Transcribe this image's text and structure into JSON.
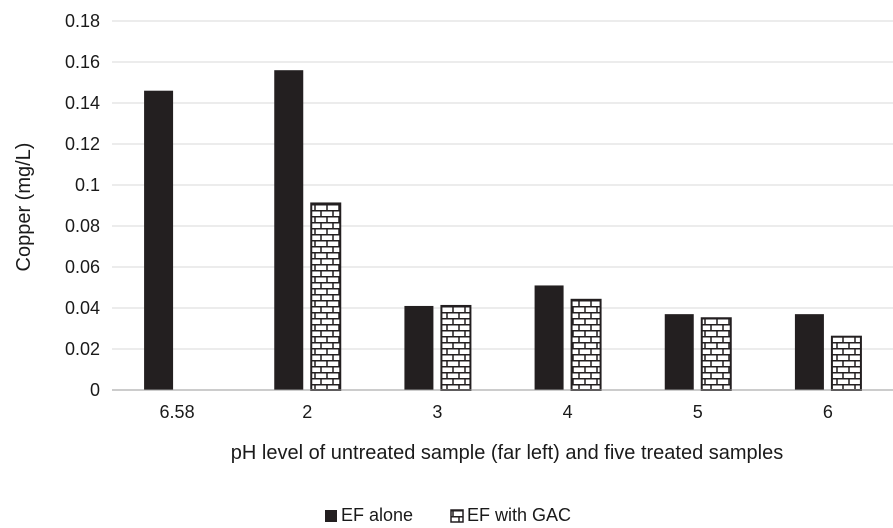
{
  "chart_data": {
    "type": "bar",
    "title": "",
    "xlabel": "pH level of untreated sample (far left) and five treated samples",
    "ylabel": "Copper (mg/L)",
    "categories": [
      "6.58",
      "2",
      "3",
      "4",
      "5",
      "6"
    ],
    "ylim": [
      0,
      0.18
    ],
    "yticks": [
      "0",
      "0.02",
      "0.04",
      "0.06",
      "0.08",
      "0.1",
      "0.12",
      "0.14",
      "0.16",
      "0.18"
    ],
    "grid": true,
    "legend_position": "bottom",
    "series": [
      {
        "name": "EF alone",
        "values": [
          0.146,
          0.156,
          0.041,
          0.051,
          0.037,
          0.037
        ],
        "color": "#231f20",
        "pattern": "solid"
      },
      {
        "name": "EF with GAC",
        "values": [
          0,
          0.091,
          0.041,
          0.044,
          0.035,
          0.026
        ],
        "color": "#231f20",
        "pattern": "brick"
      }
    ]
  }
}
